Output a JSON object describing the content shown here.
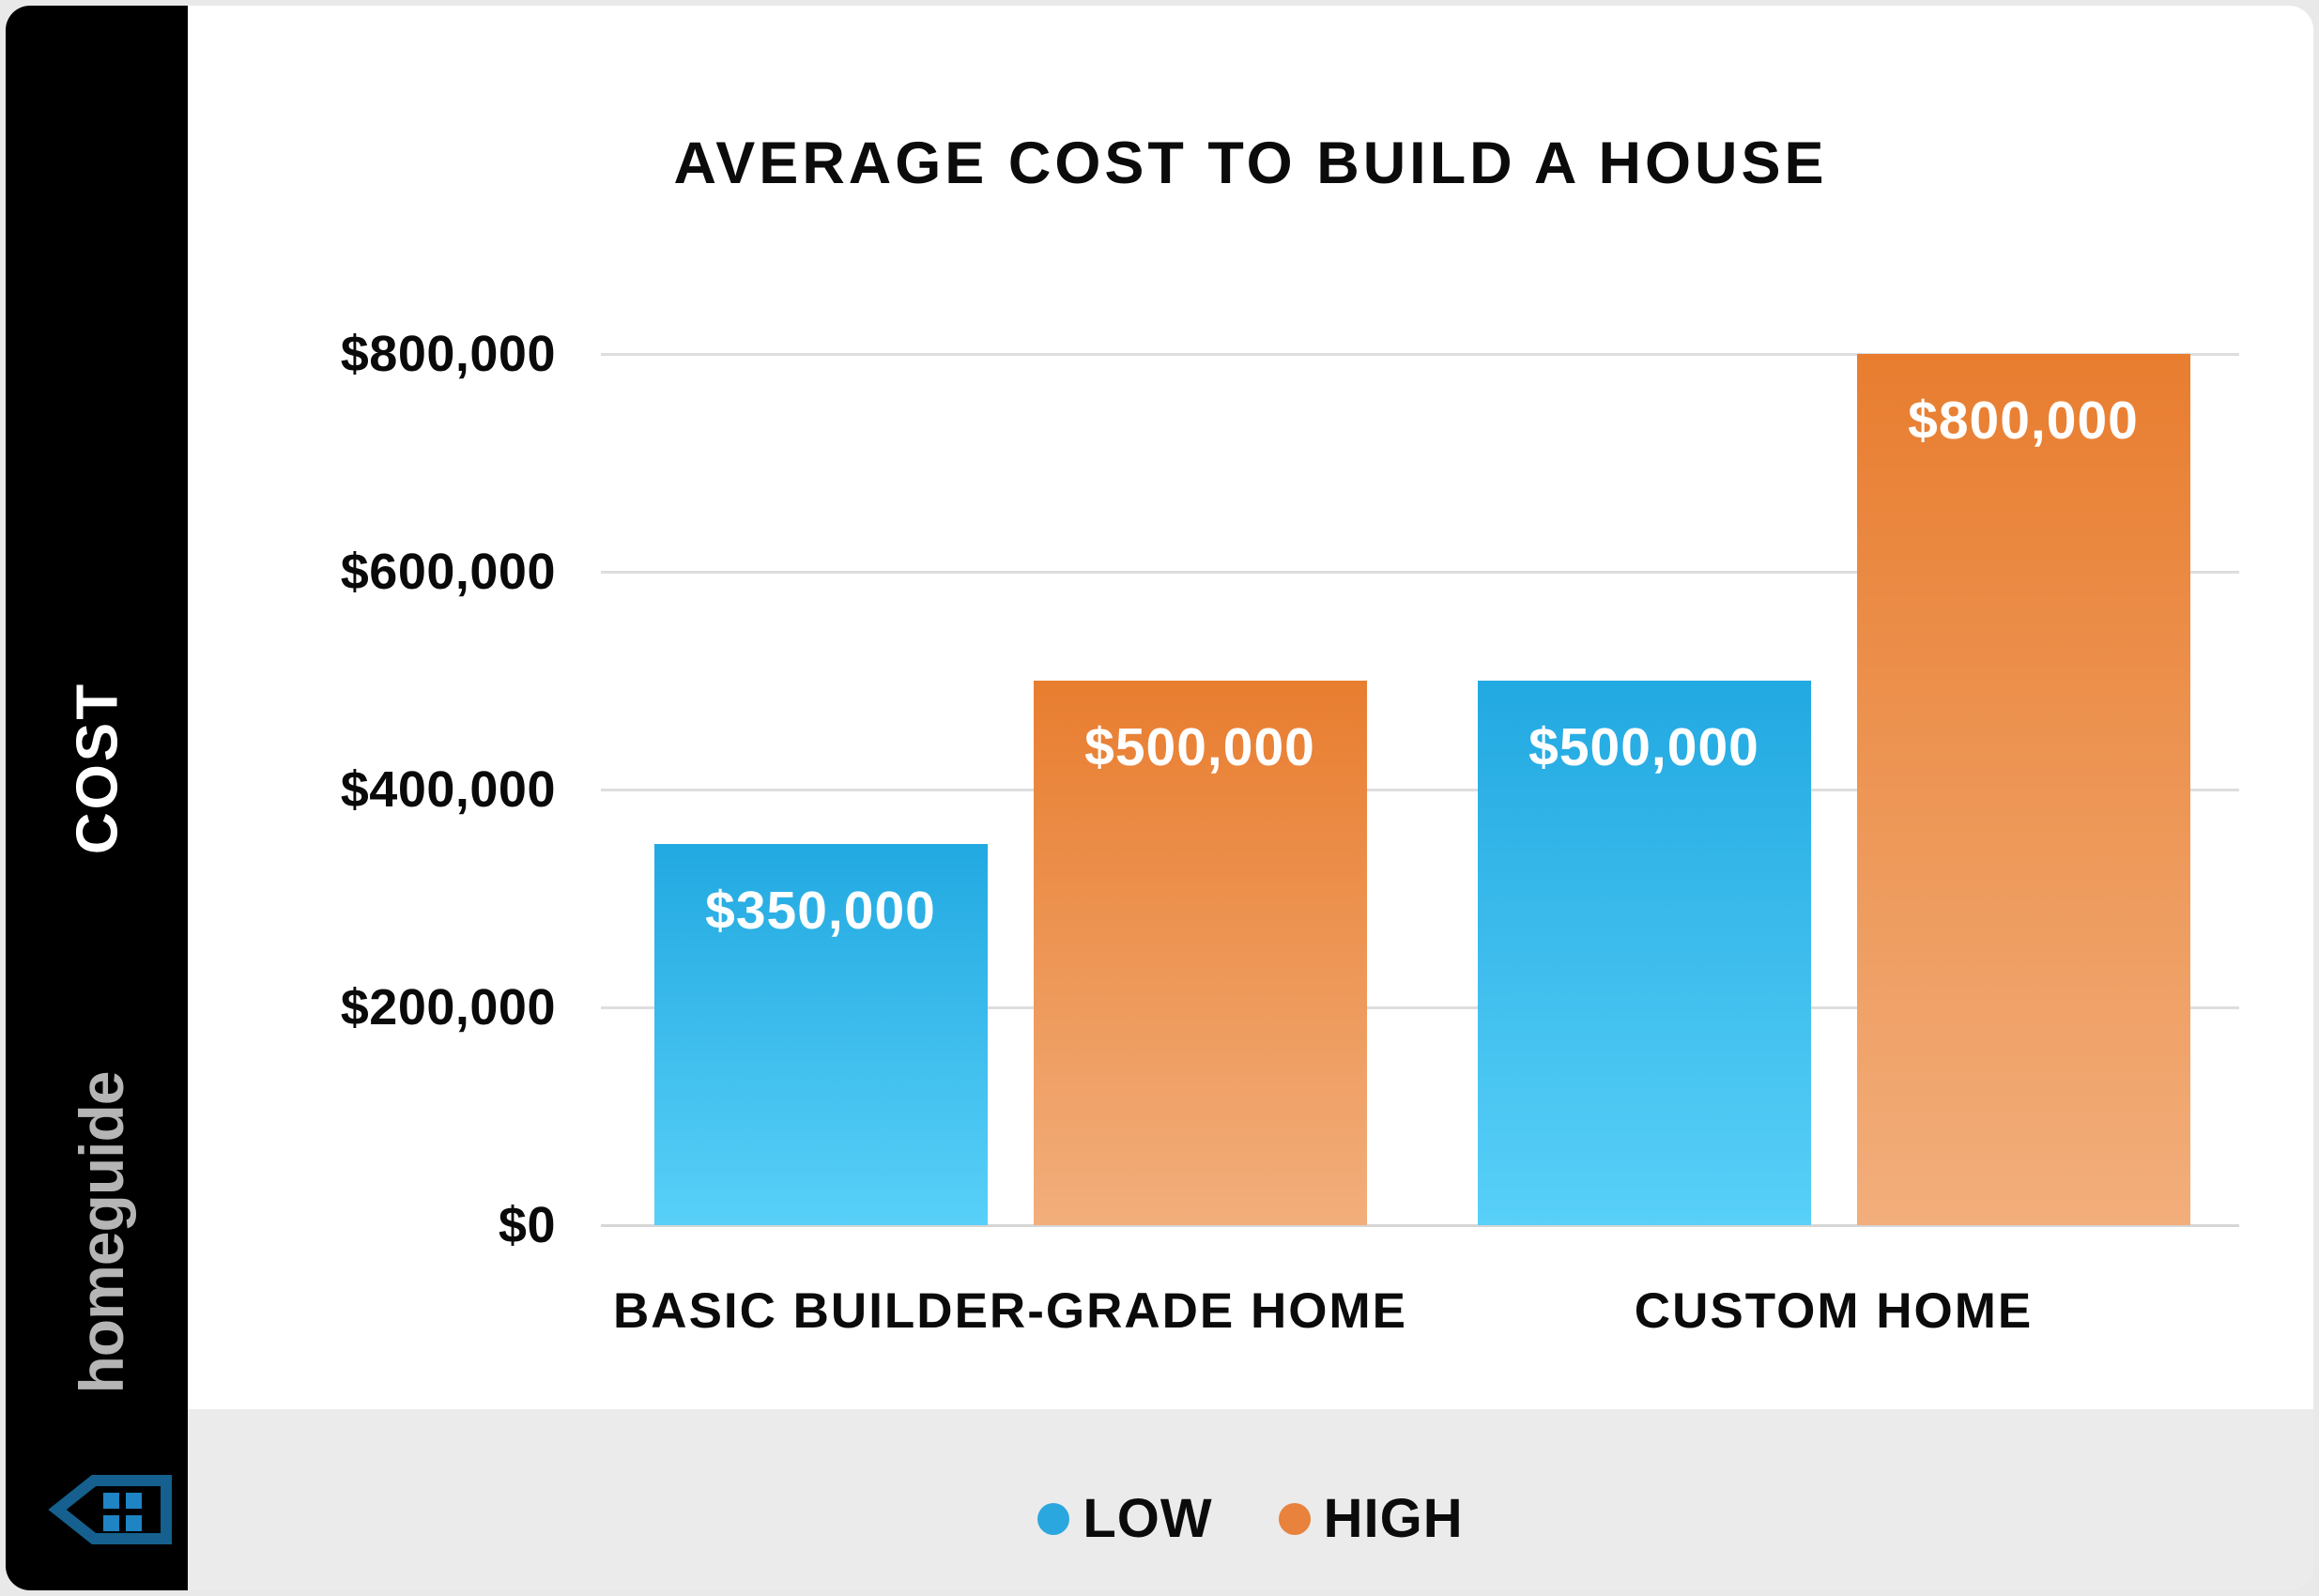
{
  "title": "AVERAGE COST TO BUILD A HOUSE",
  "sidebar": {
    "axis_label": "COST",
    "brand_name": "homeguide",
    "icon": "homeguide-house-icon"
  },
  "y_axis": {
    "tick_values": [
      800000,
      600000,
      400000,
      200000,
      0
    ],
    "tick_labels": [
      "$800,000",
      "$600,000",
      "$400,000",
      "$200,000",
      "$0"
    ]
  },
  "legend": [
    {
      "label": "LOW",
      "dot_color": "#2aa7de"
    },
    {
      "label": "HIGH",
      "dot_color": "#e8823c"
    }
  ],
  "chart_data": {
    "type": "bar",
    "title": "AVERAGE COST TO BUILD A HOUSE",
    "categories": [
      "BASIC BUILDER-GRADE HOME",
      "CUSTOM HOME"
    ],
    "series": [
      {
        "name": "LOW",
        "values": [
          350000,
          500000
        ],
        "labels": [
          "$350,000",
          "$500,000"
        ]
      },
      {
        "name": "HIGH",
        "values": [
          500000,
          800000
        ],
        "labels": [
          "$500,000",
          "$800,000"
        ]
      }
    ],
    "xlabel": "",
    "ylabel": "COST",
    "ylim": [
      0,
      800000
    ],
    "ytick_step": 200000,
    "grid": true,
    "legend_position": "bottom"
  },
  "colors": {
    "page_bg": "#e9e9e9",
    "card_bg": "#ffffff",
    "sidebar_bg": "#000000",
    "footer_bg": "#ebebeb",
    "gridline": "#dedede",
    "low_bar_top": "#22a9e1",
    "low_bar_bottom": "#58d0f8",
    "high_bar_top": "#e87d2f",
    "high_bar_bottom": "#f2ae7b",
    "brand_gray": "#b5b5b5",
    "house_outline": "#15608e",
    "house_panes": "#1e84c4",
    "text_black": "#0b0b0b"
  }
}
